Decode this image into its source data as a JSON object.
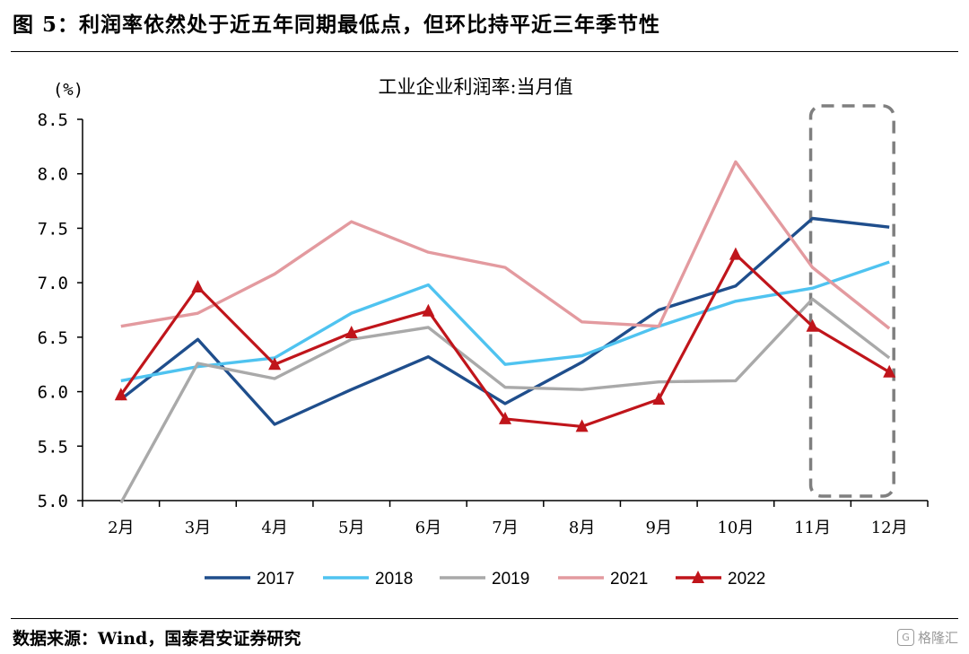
{
  "figure": {
    "title": "图 5：利润率依然处于近五年同期最低点，但环比持平近三年季节性",
    "source": "数据来源：Wind，国泰君安证券研究",
    "watermark": "格隆汇"
  },
  "chart_data": {
    "type": "line",
    "title": "工业企业利润率:当月值",
    "ylabel": "(%)",
    "xlabel": "",
    "ylim": [
      5.0,
      8.5
    ],
    "yticks": [
      5.0,
      5.5,
      6.0,
      6.5,
      7.0,
      7.5,
      8.0,
      8.5
    ],
    "ytick_labels": [
      "5.0",
      "5.5",
      "6.0",
      "6.5",
      "7.0",
      "7.5",
      "8.0",
      "8.5"
    ],
    "categories": [
      "2月",
      "3月",
      "4月",
      "5月",
      "6月",
      "7月",
      "8月",
      "9月",
      "10月",
      "11月",
      "12月"
    ],
    "grid": false,
    "legend_position": "bottom",
    "highlight": {
      "categories": [
        "11月",
        "12月"
      ],
      "style": "dashed-box"
    },
    "series": [
      {
        "name": "2017",
        "color": "#1f4e8c",
        "marker": "none",
        "values": [
          5.93,
          6.48,
          5.7,
          6.02,
          6.32,
          5.89,
          6.27,
          6.75,
          6.97,
          7.59,
          7.51
        ]
      },
      {
        "name": "2018",
        "color": "#4fc3f0",
        "marker": "none",
        "values": [
          6.1,
          6.23,
          6.31,
          6.72,
          6.98,
          6.25,
          6.33,
          6.6,
          6.83,
          6.95,
          7.19
        ]
      },
      {
        "name": "2019",
        "color": "#a9a9a9",
        "marker": "none",
        "values": [
          4.98,
          6.26,
          6.12,
          6.48,
          6.59,
          6.04,
          6.02,
          6.09,
          6.1,
          6.85,
          6.31
        ]
      },
      {
        "name": "2021",
        "color": "#e39a9f",
        "marker": "none",
        "values": [
          6.6,
          6.72,
          7.08,
          7.56,
          7.28,
          7.14,
          6.64,
          6.6,
          8.11,
          7.14,
          6.58
        ]
      },
      {
        "name": "2022",
        "color": "#c0151b",
        "marker": "triangle",
        "values": [
          5.97,
          6.96,
          6.25,
          6.54,
          6.74,
          5.75,
          5.68,
          5.93,
          7.26,
          6.6,
          6.18
        ]
      }
    ]
  }
}
